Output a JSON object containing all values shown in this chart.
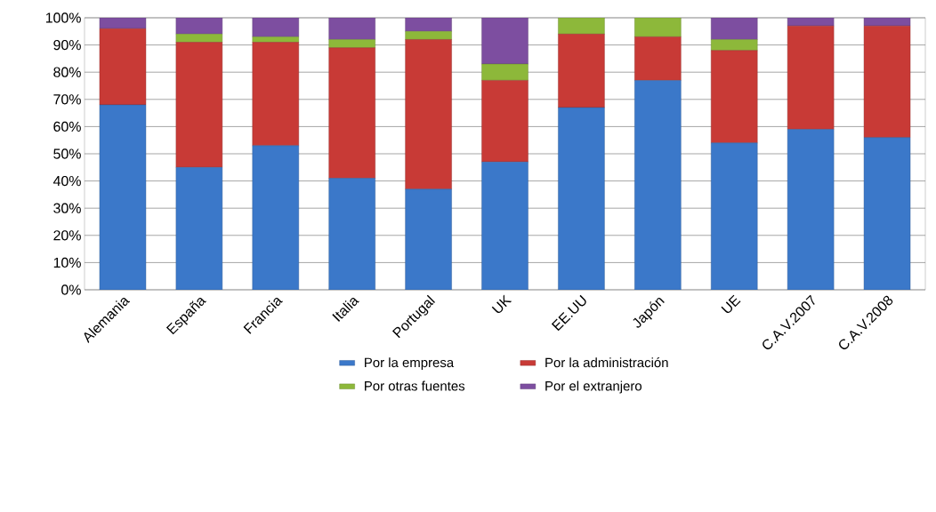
{
  "chart_data": {
    "type": "bar",
    "stacked": true,
    "categories": [
      "Alemania",
      "España",
      "Francia",
      "Italia",
      "Portugal",
      "UK",
      "EE.UU",
      "Japón",
      "UE",
      "C.A.V.2007",
      "C.A.V.2008"
    ],
    "series": [
      {
        "name": "Por la empresa",
        "color": "#3b78c9",
        "values": [
          68,
          45,
          53,
          41,
          37,
          47,
          67,
          77,
          54,
          59,
          56
        ]
      },
      {
        "name": "Por la administración",
        "color": "#c83a36",
        "values": [
          28,
          46,
          38,
          48,
          55,
          30,
          27,
          16,
          34,
          38,
          41
        ]
      },
      {
        "name": "Por otras fuentes",
        "color": "#8db83a",
        "values": [
          0,
          3,
          2,
          3,
          3,
          6,
          6,
          7,
          4,
          0,
          0
        ]
      },
      {
        "name": "Por el extranjero",
        "color": "#7d4ea0",
        "values": [
          4,
          6,
          7,
          8,
          5,
          17,
          0,
          0,
          8,
          3,
          3
        ]
      }
    ],
    "ylim": [
      0,
      100
    ],
    "yticks": [
      {
        "value": 0,
        "label": "0%"
      },
      {
        "value": 10,
        "label": "10%"
      },
      {
        "value": 20,
        "label": "20%"
      },
      {
        "value": 30,
        "label": "30%"
      },
      {
        "value": 40,
        "label": "40%"
      },
      {
        "value": 50,
        "label": "50%"
      },
      {
        "value": 60,
        "label": "60%"
      },
      {
        "value": 70,
        "label": "70%"
      },
      {
        "value": 80,
        "label": "80%"
      },
      {
        "value": 90,
        "label": "90%"
      },
      {
        "value": 100,
        "label": "100%"
      }
    ],
    "grid": "y",
    "legend": "bottom"
  }
}
